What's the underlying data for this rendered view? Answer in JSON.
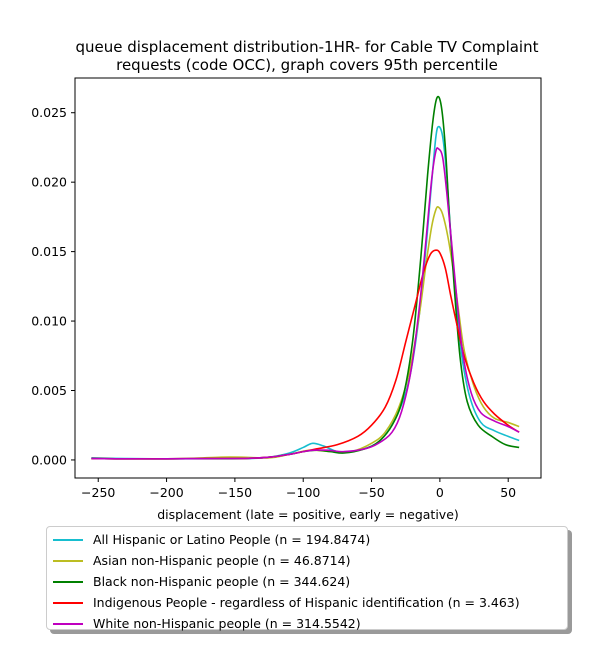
{
  "chart_data": {
    "type": "line",
    "title": "queue displacement distribution-1HR-  for Cable TV Complaint requests (code OCC), graph covers 95th percentile",
    "title_lines": [
      "queue displacement distribution-1HR-  for Cable TV Complaint",
      "requests (code OCC), graph covers 95th percentile"
    ],
    "xlabel": "displacement (late = positive, early = negative)",
    "ylabel": "",
    "xlim": [
      -267,
      74
    ],
    "ylim": [
      -0.0013,
      0.0275
    ],
    "xticks": [
      -250,
      -200,
      -150,
      -100,
      -50,
      0,
      50
    ],
    "xtick_labels": [
      "−250",
      "−200",
      "−150",
      "−100",
      "−50",
      "0",
      "50"
    ],
    "yticks": [
      0.0,
      0.005,
      0.01,
      0.015,
      0.02,
      0.025
    ],
    "ytick_labels": [
      "0.000",
      "0.005",
      "0.010",
      "0.015",
      "0.020",
      "0.025"
    ],
    "grid": false,
    "legend_position": "below",
    "series": [
      {
        "name": "All Hispanic or Latino People (n = 194.8474)",
        "color": "#17becf",
        "points": [
          [
            -255,
            0.00015
          ],
          [
            -230,
            0.0001
          ],
          [
            -200,
            8e-05
          ],
          [
            -170,
            8e-05
          ],
          [
            -140,
            0.0001
          ],
          [
            -125,
            0.0002
          ],
          [
            -110,
            0.0005
          ],
          [
            -100,
            0.0009
          ],
          [
            -93,
            0.0012
          ],
          [
            -85,
            0.001
          ],
          [
            -75,
            0.0006
          ],
          [
            -65,
            0.0006
          ],
          [
            -50,
            0.001
          ],
          [
            -40,
            0.0018
          ],
          [
            -30,
            0.0035
          ],
          [
            -22,
            0.006
          ],
          [
            -15,
            0.0105
          ],
          [
            -10,
            0.0155
          ],
          [
            -6,
            0.02
          ],
          [
            -3,
            0.0232
          ],
          [
            -1,
            0.024
          ],
          [
            2,
            0.0233
          ],
          [
            5,
            0.0205
          ],
          [
            8,
            0.0162
          ],
          [
            12,
            0.0112
          ],
          [
            16,
            0.0075
          ],
          [
            22,
            0.0045
          ],
          [
            30,
            0.0027
          ],
          [
            40,
            0.0021
          ],
          [
            50,
            0.0017
          ],
          [
            58,
            0.0014
          ]
        ]
      },
      {
        "name": "Asian non-Hispanic people (n = 46.8714)",
        "color": "#bcbd22",
        "points": [
          [
            -255,
            0.0001
          ],
          [
            -230,
            8e-05
          ],
          [
            -200,
            8e-05
          ],
          [
            -180,
            0.00012
          ],
          [
            -160,
            0.0002
          ],
          [
            -145,
            0.0002
          ],
          [
            -125,
            0.00015
          ],
          [
            -110,
            0.0004
          ],
          [
            -95,
            0.0007
          ],
          [
            -80,
            0.0006
          ],
          [
            -65,
            0.0006
          ],
          [
            -50,
            0.0012
          ],
          [
            -40,
            0.002
          ],
          [
            -30,
            0.0038
          ],
          [
            -22,
            0.0065
          ],
          [
            -15,
            0.0105
          ],
          [
            -10,
            0.0142
          ],
          [
            -6,
            0.0168
          ],
          [
            -3,
            0.018
          ],
          [
            -1,
            0.0182
          ],
          [
            2,
            0.0177
          ],
          [
            6,
            0.016
          ],
          [
            10,
            0.0135
          ],
          [
            14,
            0.0105
          ],
          [
            18,
            0.0078
          ],
          [
            25,
            0.0053
          ],
          [
            32,
            0.0038
          ],
          [
            40,
            0.003
          ],
          [
            50,
            0.0027
          ],
          [
            58,
            0.0024
          ]
        ]
      },
      {
        "name": "Black non-Hispanic people (n = 344.624)",
        "color": "#008000",
        "points": [
          [
            -255,
            0.0001
          ],
          [
            -230,
            8e-05
          ],
          [
            -200,
            8e-05
          ],
          [
            -170,
            0.0001
          ],
          [
            -140,
            0.00012
          ],
          [
            -125,
            0.0002
          ],
          [
            -110,
            0.0004
          ],
          [
            -100,
            0.0006
          ],
          [
            -90,
            0.0007
          ],
          [
            -80,
            0.0006
          ],
          [
            -70,
            0.0005
          ],
          [
            -55,
            0.0008
          ],
          [
            -45,
            0.0013
          ],
          [
            -35,
            0.0025
          ],
          [
            -27,
            0.0045
          ],
          [
            -20,
            0.0085
          ],
          [
            -14,
            0.0145
          ],
          [
            -9,
            0.0205
          ],
          [
            -5,
            0.0245
          ],
          [
            -2,
            0.0261
          ],
          [
            1,
            0.0255
          ],
          [
            4,
            0.0225
          ],
          [
            7,
            0.0175
          ],
          [
            11,
            0.0118
          ],
          [
            15,
            0.0072
          ],
          [
            20,
            0.0042
          ],
          [
            28,
            0.0025
          ],
          [
            38,
            0.0017
          ],
          [
            48,
            0.0011
          ],
          [
            58,
            0.0009
          ]
        ]
      },
      {
        "name": "Indigenous People - regardless of Hispanic identification (n = 3.463)",
        "color": "#ff0000",
        "points": [
          [
            -255,
            0.0001
          ],
          [
            -230,
            8e-05
          ],
          [
            -200,
            8e-05
          ],
          [
            -170,
            0.0001
          ],
          [
            -140,
            0.00012
          ],
          [
            -125,
            0.0002
          ],
          [
            -110,
            0.0004
          ],
          [
            -100,
            0.0006
          ],
          [
            -90,
            0.0008
          ],
          [
            -75,
            0.0011
          ],
          [
            -60,
            0.0017
          ],
          [
            -50,
            0.0025
          ],
          [
            -40,
            0.0038
          ],
          [
            -32,
            0.0058
          ],
          [
            -25,
            0.0085
          ],
          [
            -18,
            0.0112
          ],
          [
            -12,
            0.0135
          ],
          [
            -7,
            0.0148
          ],
          [
            -3,
            0.0151
          ],
          [
            0,
            0.0149
          ],
          [
            4,
            0.0138
          ],
          [
            8,
            0.0118
          ],
          [
            13,
            0.0095
          ],
          [
            18,
            0.0074
          ],
          [
            25,
            0.0055
          ],
          [
            32,
            0.0042
          ],
          [
            40,
            0.0033
          ],
          [
            50,
            0.0025
          ],
          [
            58,
            0.002
          ]
        ]
      },
      {
        "name": "White non-Hispanic people (n = 314.5542)",
        "color": "#bf00bf",
        "points": [
          [
            -255,
            0.0001
          ],
          [
            -230,
            8e-05
          ],
          [
            -200,
            8e-05
          ],
          [
            -170,
            0.0001
          ],
          [
            -140,
            0.00012
          ],
          [
            -125,
            0.0002
          ],
          [
            -110,
            0.0004
          ],
          [
            -100,
            0.0006
          ],
          [
            -92,
            0.0007
          ],
          [
            -82,
            0.0007
          ],
          [
            -70,
            0.0006
          ],
          [
            -55,
            0.0008
          ],
          [
            -45,
            0.0012
          ],
          [
            -35,
            0.002
          ],
          [
            -28,
            0.0035
          ],
          [
            -21,
            0.0065
          ],
          [
            -15,
            0.011
          ],
          [
            -10,
            0.016
          ],
          [
            -6,
            0.0202
          ],
          [
            -3,
            0.0222
          ],
          [
            -1,
            0.0224
          ],
          [
            2,
            0.0218
          ],
          [
            5,
            0.0193
          ],
          [
            9,
            0.0152
          ],
          [
            13,
            0.011
          ],
          [
            17,
            0.0075
          ],
          [
            23,
            0.0048
          ],
          [
            30,
            0.0034
          ],
          [
            40,
            0.0028
          ],
          [
            50,
            0.0024
          ],
          [
            58,
            0.002
          ]
        ]
      }
    ]
  }
}
